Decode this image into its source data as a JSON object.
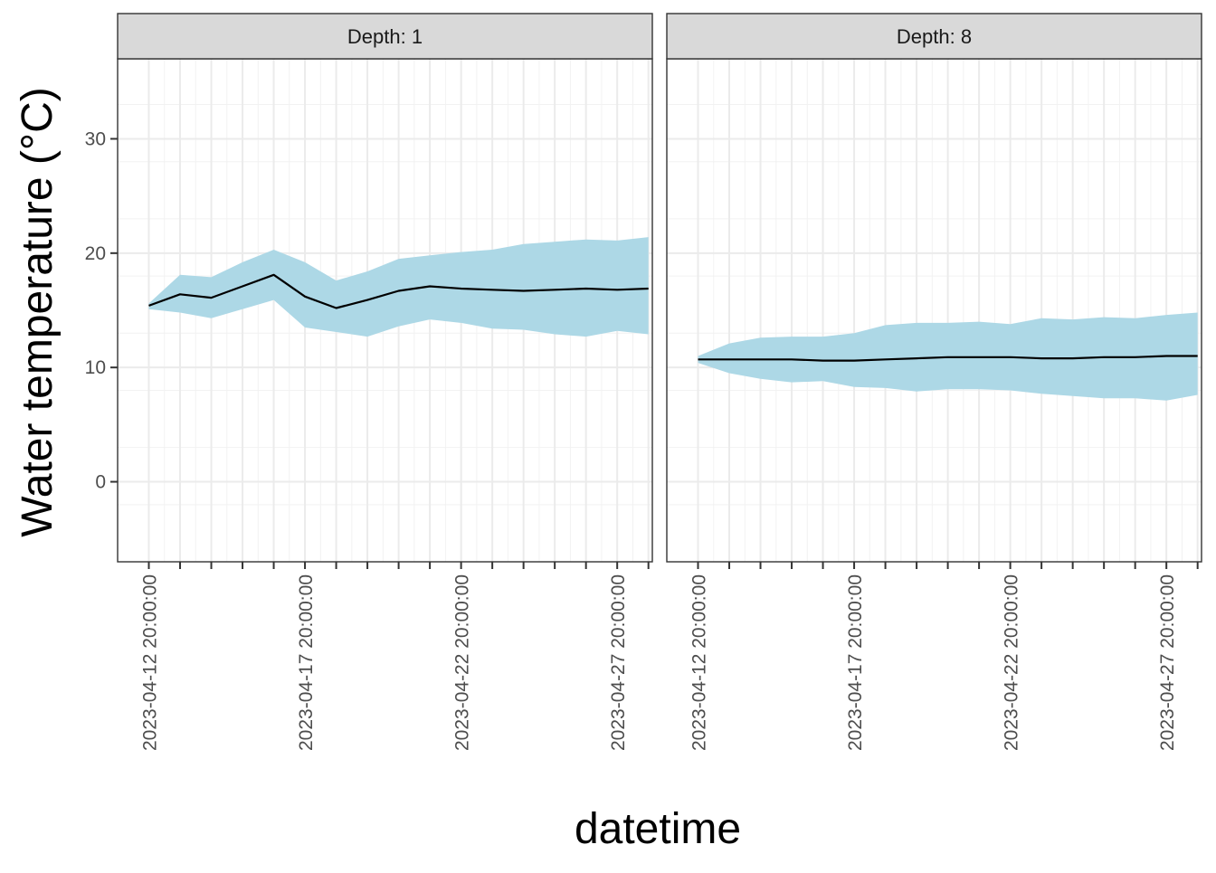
{
  "chart_data": {
    "type": "line",
    "xlabel": "datetime",
    "ylabel": "Water temperature (°C)",
    "ylim": [
      -7,
      37
    ],
    "yticks": [
      0,
      10,
      20,
      30
    ],
    "x_tick_labels": [
      "2023-04-12 20:00:00",
      "2023-04-17 20:00:00",
      "2023-04-22 20:00:00",
      "2023-04-27 20:00:00"
    ],
    "x_tick_dates": [
      "2023-04-12",
      "2023-04-17",
      "2023-04-22",
      "2023-04-27"
    ],
    "x_minor_tick_dates": [
      "2023-04-12",
      "2023-04-13",
      "2023-04-14",
      "2023-04-15",
      "2023-04-16",
      "2023-04-17",
      "2023-04-18",
      "2023-04-19",
      "2023-04-20",
      "2023-04-21",
      "2023-04-22",
      "2023-04-23",
      "2023-04-24",
      "2023-04-25",
      "2023-04-26",
      "2023-04-27",
      "2023-04-28"
    ],
    "xlim": [
      "2023-04-11 20:00:00",
      "2023-04-28 23:00:00"
    ],
    "band_color": "#add8e6",
    "line_color": "#000000",
    "grid": true,
    "panels": [
      {
        "strip_label": "Depth: 1",
        "dates": [
          "2023-04-12",
          "2023-04-13",
          "2023-04-14",
          "2023-04-15",
          "2023-04-16",
          "2023-04-17",
          "2023-04-18",
          "2023-04-19",
          "2023-04-20",
          "2023-04-21",
          "2023-04-22",
          "2023-04-23",
          "2023-04-24",
          "2023-04-25",
          "2023-04-26",
          "2023-04-27",
          "2023-04-28"
        ],
        "mean": [
          15.4,
          16.4,
          16.1,
          17.1,
          18.1,
          16.2,
          15.2,
          15.9,
          16.7,
          17.1,
          16.9,
          16.8,
          16.7,
          16.8,
          16.9,
          16.8,
          16.9
        ],
        "upper": [
          15.6,
          18.1,
          17.9,
          19.2,
          20.3,
          19.2,
          17.6,
          18.4,
          19.5,
          19.8,
          20.1,
          20.3,
          20.8,
          21.0,
          21.2,
          21.1,
          21.4
        ],
        "lower": [
          15.1,
          14.8,
          14.3,
          15.1,
          15.9,
          13.5,
          13.1,
          12.7,
          13.6,
          14.2,
          13.9,
          13.4,
          13.3,
          12.9,
          12.7,
          13.2,
          12.9
        ]
      },
      {
        "strip_label": "Depth: 8",
        "dates": [
          "2023-04-12",
          "2023-04-13",
          "2023-04-14",
          "2023-04-15",
          "2023-04-16",
          "2023-04-17",
          "2023-04-18",
          "2023-04-19",
          "2023-04-20",
          "2023-04-21",
          "2023-04-22",
          "2023-04-23",
          "2023-04-24",
          "2023-04-25",
          "2023-04-26",
          "2023-04-27",
          "2023-04-28"
        ],
        "mean": [
          10.7,
          10.7,
          10.7,
          10.7,
          10.6,
          10.6,
          10.7,
          10.8,
          10.9,
          10.9,
          10.9,
          10.8,
          10.8,
          10.9,
          10.9,
          11.0,
          11.0
        ],
        "upper": [
          11.0,
          12.1,
          12.6,
          12.7,
          12.7,
          13.0,
          13.7,
          13.9,
          13.9,
          14.0,
          13.8,
          14.3,
          14.2,
          14.4,
          14.3,
          14.6,
          14.8
        ],
        "lower": [
          10.4,
          9.5,
          9.0,
          8.7,
          8.8,
          8.3,
          8.2,
          7.9,
          8.1,
          8.1,
          8.0,
          7.7,
          7.5,
          7.3,
          7.3,
          7.1,
          7.6
        ]
      }
    ]
  }
}
